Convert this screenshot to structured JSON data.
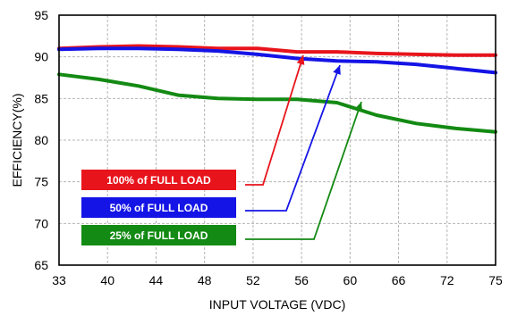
{
  "chart_data": {
    "type": "line",
    "title": "",
    "xlabel": "INPUT VOLTAGE (VDC)",
    "ylabel": "EFFICIENCY(%)",
    "x_ticks": [
      "33",
      "40",
      "44",
      "48",
      "52",
      "56",
      "60",
      "66",
      "72",
      "75"
    ],
    "y_ticks": [
      65,
      70,
      75,
      80,
      85,
      90,
      95
    ],
    "ylim": [
      65,
      95
    ],
    "grid": true,
    "legend_position": "bottom-left, inside plot, with arrows pointing to curves",
    "series": [
      {
        "name": "100% of FULL LOAD",
        "color": "#e8141c",
        "values": [
          91.0,
          91.2,
          91.3,
          91.2,
          91.0,
          91.0,
          90.6,
          90.6,
          90.4,
          90.3,
          90.2,
          90.2
        ]
      },
      {
        "name": "50% of FULL LOAD",
        "color": "#1414e6",
        "values": [
          90.9,
          91.0,
          91.0,
          90.9,
          90.7,
          90.3,
          89.8,
          89.5,
          89.4,
          89.1,
          88.6,
          88.1
        ]
      },
      {
        "name": "25% of FULL LOAD",
        "color": "#138a13",
        "values": [
          87.9,
          87.3,
          86.5,
          85.4,
          85.0,
          84.9,
          84.9,
          84.5,
          83.0,
          82.0,
          81.4,
          81.0
        ]
      }
    ],
    "sample_positions": [
      0,
      0.0909,
      0.1818,
      0.2727,
      0.3636,
      0.4545,
      0.5455,
      0.6364,
      0.7273,
      0.8182,
      0.9091,
      1.0
    ]
  }
}
